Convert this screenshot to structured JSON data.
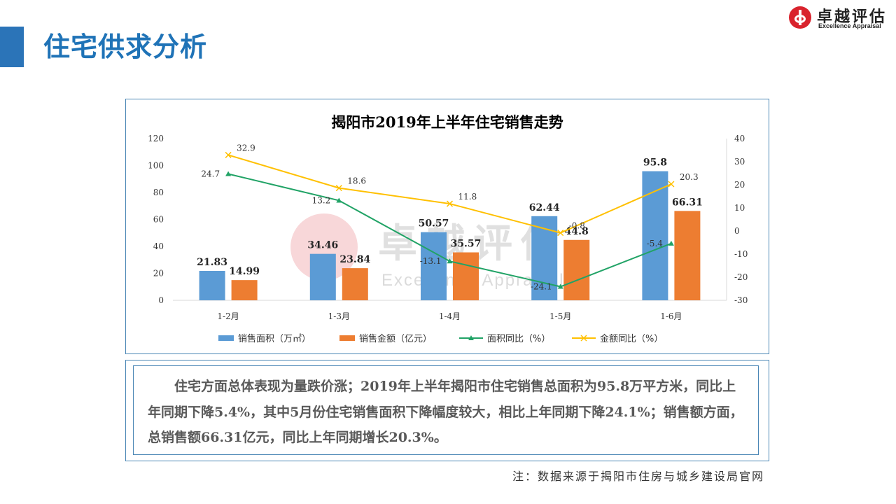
{
  "page": {
    "title": "住宅供求分析",
    "logo_cn": "卓越评估",
    "logo_en": "Excellence Appraisal",
    "watermark_cn": "卓越评估",
    "watermark_en": "Excellence Appraisal",
    "summary": "住宅方面总体表现为量跌价涨；2019年上半年揭阳市住宅销售总面积为95.8万平方米，同比上年同期下降5.4%，其中5月份住宅销售面积下降幅度较大，相比上年同期下降24.1%；销售额方面，总销售额66.31亿元，同比上年同期增长20.3%。",
    "footnote": "注：数据来源于揭阳市住房与城乡建设局官网"
  },
  "colors": {
    "title_blue": "#1f73b7",
    "bar_area": "#5b9bd5",
    "bar_amount": "#ed7d31",
    "line_area_yoy": "#21a366",
    "line_amount_yoy": "#ffc000",
    "frame": "#4a86b5"
  },
  "chart_data": {
    "type": "bar",
    "title": "揭阳市2019年上半年住宅销售走势",
    "categories": [
      "1-2月",
      "1-3月",
      "1-4月",
      "1-5月",
      "1-6月"
    ],
    "series": [
      {
        "name": "销售面积（万㎡）",
        "kind": "bar",
        "axis": "left",
        "values": [
          21.83,
          34.46,
          50.57,
          62.44,
          95.8
        ],
        "labels": [
          "21.83",
          "34.46",
          "50.57",
          "62.44",
          "95.8"
        ]
      },
      {
        "name": "销售金额（亿元）",
        "kind": "bar",
        "axis": "left",
        "values": [
          14.99,
          23.84,
          35.57,
          44.8,
          66.31
        ],
        "labels": [
          "14.99",
          "23.84",
          "35.57",
          "44.8",
          "66.31"
        ]
      },
      {
        "name": "面积同比（%）",
        "kind": "line",
        "axis": "right",
        "values": [
          24.7,
          13.2,
          -13.1,
          -24.1,
          -5.4
        ],
        "labels": [
          "24.7",
          "13.2",
          "-13.1",
          "-24.1",
          "-5.4"
        ]
      },
      {
        "name": "金额同比（%）",
        "kind": "line",
        "axis": "right",
        "values": [
          32.9,
          18.6,
          11.8,
          -0.8,
          20.3
        ],
        "labels": [
          "32.9",
          "18.6",
          "11.8",
          "-0.8",
          "20.3"
        ]
      }
    ],
    "y_left": {
      "min": 0,
      "max": 120,
      "ticks": [
        "0",
        "20",
        "40",
        "60",
        "80",
        "100",
        "120"
      ]
    },
    "y_right": {
      "min": -30,
      "max": 40,
      "ticks": [
        "-30",
        "-20",
        "-10",
        "0",
        "10",
        "20",
        "30",
        "40"
      ]
    },
    "grid": false,
    "legend_position": "bottom"
  }
}
